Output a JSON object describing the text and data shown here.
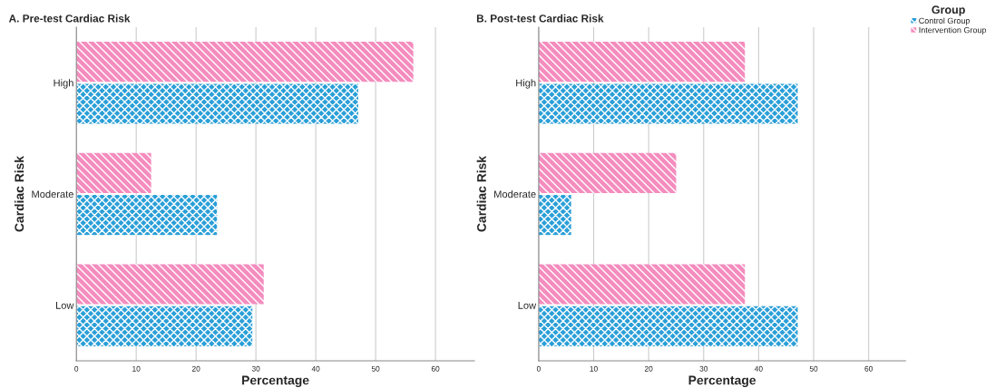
{
  "chart_data": [
    {
      "type": "bar",
      "orientation": "horizontal",
      "title": "A. Pre-test Cardiac Risk",
      "xlabel": "Percentage",
      "ylabel": "Cardiac Risk",
      "categories": [
        "High",
        "Moderate",
        "Low"
      ],
      "xlim": [
        0,
        66.5
      ],
      "xticks": [
        0,
        10,
        20,
        30,
        40,
        50,
        60
      ],
      "grid": "x",
      "series": [
        {
          "color": "#2a9fd8",
          "values": [
            47.1,
            23.5,
            29.4
          ]
        },
        {
          "color": "#f48cbe",
          "values": [
            56.3,
            12.5,
            31.3
          ]
        }
      ]
    },
    {
      "type": "bar",
      "orientation": "horizontal",
      "title": "B. Post-test Cardiac Risk",
      "xlabel": "Percentage",
      "ylabel": "Cardiac Risk",
      "categories": [
        "High",
        "Moderate",
        "Low"
      ],
      "xlim": [
        0,
        66.7
      ],
      "xticks": [
        0,
        10,
        20,
        30,
        40,
        50,
        60
      ],
      "grid": "x",
      "legend": "top right",
      "legend_title": "Group",
      "series": [
        {
          "name": "Control Group",
          "color": "#2a9fd8",
          "values": [
            47.1,
            5.9,
            47.1
          ]
        },
        {
          "name": "Intervention Group",
          "color": "#f48cbe",
          "values": [
            37.5,
            25.0,
            37.5
          ]
        }
      ]
    }
  ]
}
